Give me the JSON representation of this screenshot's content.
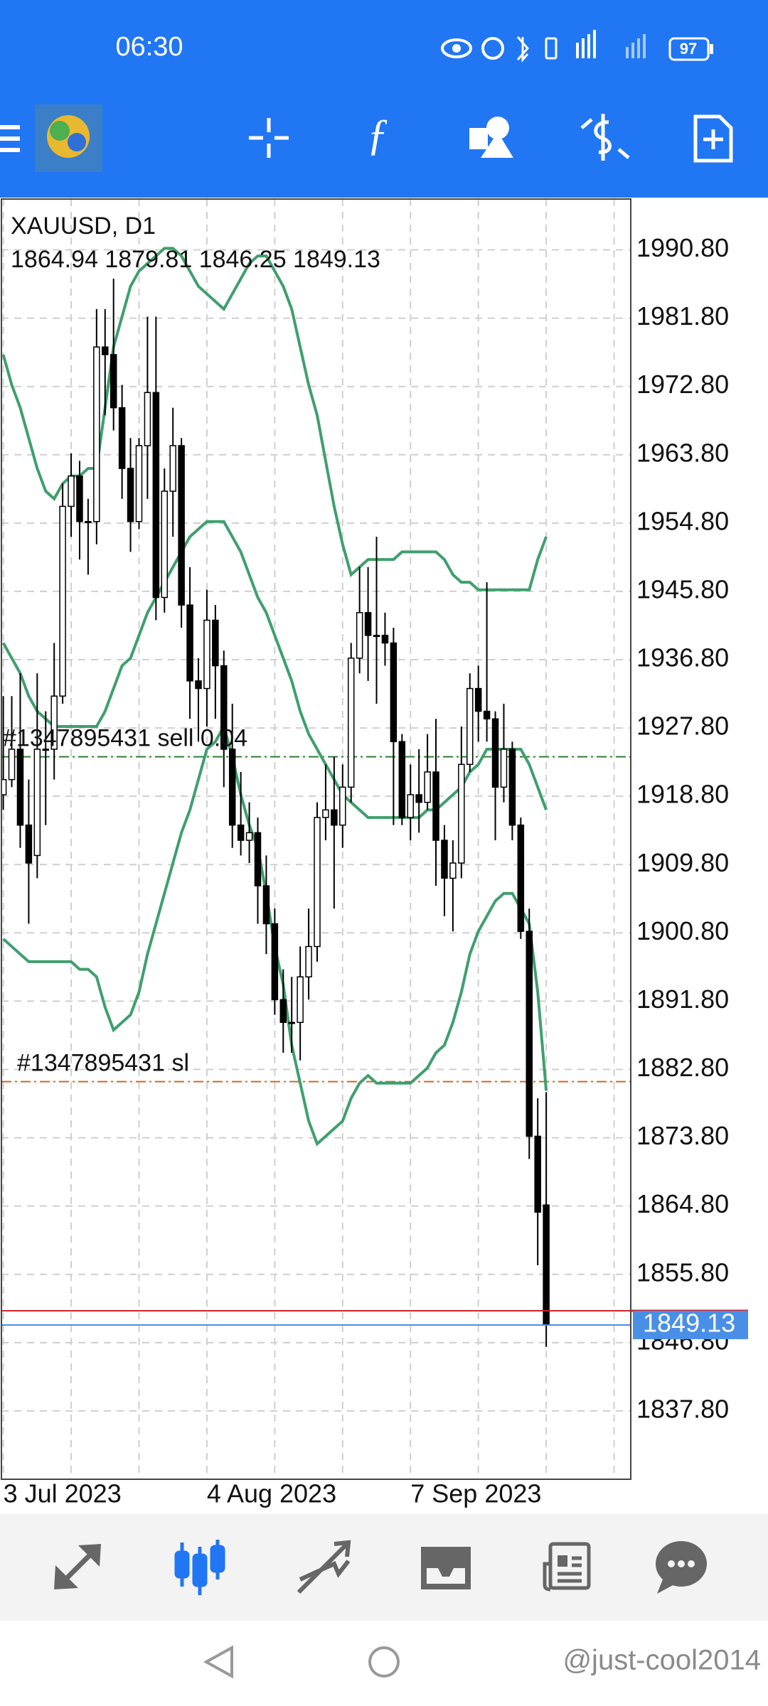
{
  "status_bar": {
    "time": "06:30",
    "battery": "97"
  },
  "chart_data": {
    "type": "candlestick",
    "title": "XAUUSD, D1",
    "subtitle": "1864.94 1879.81 1846.25 1849.13",
    "categories": [
      "3 Jul 2023",
      null,
      null,
      null,
      null,
      null,
      null,
      null,
      null,
      null,
      null,
      null,
      null,
      null,
      null,
      null,
      null,
      null,
      null,
      null,
      null,
      null,
      null,
      null,
      "4 Aug 2023",
      null,
      null,
      null,
      null,
      null,
      null,
      null,
      null,
      null,
      null,
      null,
      null,
      null,
      null,
      null,
      null,
      null,
      null,
      null,
      null,
      null,
      null,
      null,
      "7 Sep 2023",
      null,
      null,
      null,
      null,
      null,
      null,
      null,
      null,
      null,
      null,
      null,
      null,
      null,
      null,
      null,
      null
    ],
    "open": [
      1919,
      1921,
      1925,
      1915,
      1911,
      1925,
      1925,
      1932,
      1957,
      1961,
      1955,
      1955,
      1978,
      1977,
      1970,
      1962,
      1955,
      1965,
      1972,
      1945,
      1959,
      1965,
      1944,
      1934,
      1933,
      1942,
      1936,
      1925,
      1915,
      1913,
      1914,
      1907,
      1902,
      1892,
      1889,
      1889,
      1895,
      1899,
      1916,
      1917,
      1915,
      1920,
      1937,
      1943,
      1940,
      1940,
      1939,
      1926,
      1916,
      1919,
      1918,
      1922,
      1913,
      1908,
      1910,
      1923,
      1933,
      1930,
      1929,
      1920,
      1925,
      1915,
      1901,
      1874,
      1864.94
    ],
    "high": [
      1932,
      1932,
      1935,
      1921,
      1935,
      1930,
      1939,
      1960,
      1964,
      1963,
      1958,
      1983,
      1983,
      1987,
      1973,
      1966,
      1966,
      1982,
      1982,
      1962,
      1970,
      1966,
      1949,
      1937,
      1946,
      1944,
      1938,
      1931,
      1922,
      1918,
      1916,
      1911,
      1904,
      1896,
      1895,
      1899,
      1904,
      1918,
      1923,
      1924,
      1923,
      1939,
      1949,
      1949,
      1953,
      1943,
      1941,
      1927,
      1923,
      1925,
      1927,
      1929,
      1915,
      1913,
      1928,
      1935,
      1936,
      1947,
      1930,
      1931,
      1926,
      1916,
      1904,
      1879,
      1879.81
    ],
    "low": [
      1917,
      1920,
      1912,
      1902,
      1908,
      1915,
      1921,
      1931,
      1953,
      1950,
      1948,
      1952,
      1969,
      1967,
      1958,
      1951,
      1954,
      1958,
      1942,
      1943,
      1953,
      1941,
      1929,
      1926,
      1928,
      1929,
      1920,
      1912,
      1911,
      1910,
      1902,
      1898,
      1890,
      1885,
      1885,
      1884,
      1892,
      1897,
      1913,
      1904,
      1912,
      1918,
      1935,
      1934,
      1931,
      1936,
      1915,
      1915,
      1913,
      1914,
      1917,
      1907,
      1903,
      1901,
      1908,
      1922,
      1926,
      1926,
      1913,
      1918,
      1913,
      1900,
      1871,
      1857,
      1846.25
    ],
    "close": [
      1921,
      1925,
      1915,
      1910,
      1925,
      1925,
      1932,
      1957,
      1961,
      1955,
      1955,
      1978,
      1977,
      1970,
      1962,
      1955,
      1965,
      1972,
      1945,
      1959,
      1965,
      1944,
      1934,
      1933,
      1942,
      1936,
      1925,
      1915,
      1913,
      1914,
      1907,
      1902,
      1892,
      1889,
      1889,
      1895,
      1899,
      1916,
      1917,
      1915,
      1920,
      1937,
      1943,
      1940,
      1940,
      1939,
      1926,
      1916,
      1919,
      1918,
      1922,
      1913,
      1908,
      1910,
      1923,
      1933,
      1930,
      1929,
      1920,
      1925,
      1915,
      1901,
      1874,
      1864,
      1849.13
    ],
    "upper": [
      1977,
      1973,
      1970,
      1966,
      1962,
      1959,
      1958,
      1960,
      1961,
      1961,
      1962,
      1962,
      1970,
      1978,
      1982,
      1986,
      1988,
      1989,
      1990,
      1991,
      1991,
      1990,
      1988,
      1986,
      1985,
      1984,
      1983,
      1985,
      1987,
      1989,
      1990,
      1990,
      1988,
      1986,
      1983,
      1978,
      1973,
      1969,
      1963,
      1957,
      1952,
      1948,
      1949,
      1950,
      1950,
      1950,
      1950,
      1951,
      1951,
      1951,
      1951,
      1951,
      1950,
      1948,
      1947,
      1947,
      1946,
      1946,
      1946,
      1946,
      1946,
      1946,
      1946,
      1950,
      1953
    ],
    "middle": [
      1939,
      1937,
      1935,
      1932,
      1930,
      1929,
      1928,
      1928,
      1928,
      1928,
      1928,
      1928,
      1930,
      1933,
      1936,
      1937,
      1940,
      1943,
      1945,
      1947,
      1949,
      1951,
      1953,
      1954,
      1955,
      1955,
      1955,
      1953,
      1951,
      1948,
      1945,
      1943,
      1940,
      1937,
      1934,
      1930,
      1927,
      1925,
      1923,
      1921,
      1919,
      1918,
      1917,
      1916,
      1916,
      1916,
      1916,
      1916,
      1916,
      1916,
      1917,
      1917,
      1918,
      1919,
      1920,
      1922,
      1923,
      1925,
      1925,
      1925,
      1925,
      1925,
      1923,
      1920,
      1917
    ],
    "lower": [
      1900,
      1899,
      1898,
      1897,
      1897,
      1897,
      1897,
      1897,
      1897,
      1896,
      1896,
      1895,
      1891,
      1888,
      1889,
      1890,
      1893,
      1898,
      1902,
      1906,
      1910,
      1914,
      1917,
      1921,
      1925,
      1926,
      1928,
      1924,
      1919,
      1915,
      1912,
      1906,
      1899,
      1894,
      1886,
      1881,
      1876,
      1873,
      1874,
      1875,
      1876,
      1879,
      1881,
      1882,
      1881,
      1881,
      1881,
      1881,
      1881,
      1882,
      1883,
      1885,
      1886,
      1889,
      1893,
      1898,
      1901,
      1903,
      1905,
      1906,
      1906,
      1904,
      1902,
      1893,
      1880
    ],
    "band_color": "#3f9f6e",
    "bull_color": "#ffffff",
    "bear_color": "#000000",
    "ylim": [
      1828.8,
      1997.5
    ],
    "yticks": [
      {
        "value": 1990.8,
        "label": "1990.80"
      },
      {
        "value": 1981.8,
        "label": "1981.80"
      },
      {
        "value": 1972.8,
        "label": "1972.80"
      },
      {
        "value": 1963.8,
        "label": "1963.80"
      },
      {
        "value": 1954.8,
        "label": "1954.80"
      },
      {
        "value": 1945.8,
        "label": "1945.80"
      },
      {
        "value": 1936.8,
        "label": "1936.80"
      },
      {
        "value": 1927.8,
        "label": "1927.80"
      },
      {
        "value": 1918.8,
        "label": "1918.80"
      },
      {
        "value": 1909.8,
        "label": "1909.80"
      },
      {
        "value": 1900.8,
        "label": "1900.80"
      },
      {
        "value": 1891.8,
        "label": "1891.80"
      },
      {
        "value": 1882.8,
        "label": "1882.80"
      },
      {
        "value": 1873.8,
        "label": "1873.80"
      },
      {
        "value": 1864.8,
        "label": "1864.80"
      },
      {
        "value": 1855.8,
        "label": "1855.80"
      },
      {
        "value": 1846.8,
        "label": "1846.80"
      },
      {
        "value": 1837.8,
        "label": "1837.80"
      }
    ],
    "grid": true,
    "bid": 1849.13,
    "bid_color": "#4a8fe7",
    "ask": 1851.0,
    "ask_color": "#d0202a",
    "orders": [
      {
        "label": "#1347895431 sell 0.04",
        "price": 1924.0,
        "color": "#2e7d32"
      },
      {
        "label": "#1347895431 sl",
        "price": 1881.2,
        "color": "#d2691e"
      }
    ]
  },
  "watermark": "@just-cool2014"
}
